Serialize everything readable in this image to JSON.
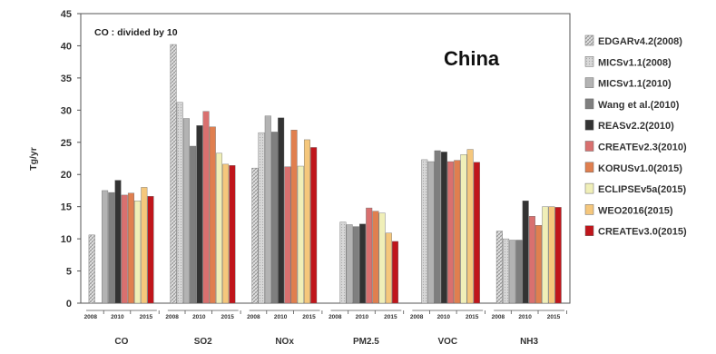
{
  "chart_data": {
    "type": "bar",
    "title": "",
    "annotation": "CO : divided by 10",
    "region_label": "China",
    "ylabel": "Tg/yr",
    "xlabel": "",
    "ylim": [
      0,
      45
    ],
    "yticks": [
      0,
      5,
      10,
      15,
      20,
      25,
      30,
      35,
      40,
      45
    ],
    "grid": false,
    "legend_position": "right",
    "categories": [
      "CO",
      "SO2",
      "NOx",
      "PM2.5",
      "VOC",
      "NH3"
    ],
    "year_ticks": [
      "2008",
      "2010",
      "2015"
    ],
    "series": [
      {
        "name": "EDGARv4.2(2008)",
        "color": "#d9d9d9",
        "pattern": "hatch",
        "values": [
          10.6,
          40.2,
          21.0,
          null,
          null,
          11.2
        ]
      },
      {
        "name": "MICSv1.1(2008)",
        "color": "#c8c8c8",
        "pattern": "light",
        "values": [
          null,
          31.2,
          26.5,
          12.6,
          22.3,
          10.0
        ]
      },
      {
        "name": "MICSv1.1(2010)",
        "color": "#b3b3b3",
        "pattern": "solid",
        "values": [
          17.5,
          28.7,
          29.1,
          12.2,
          22.0,
          9.8
        ]
      },
      {
        "name": "Wang et al.(2010)",
        "color": "#7f7f7f",
        "pattern": "solid",
        "values": [
          17.2,
          24.4,
          26.6,
          11.9,
          23.7,
          9.8
        ]
      },
      {
        "name": "REASv2.2(2010)",
        "color": "#333333",
        "pattern": "solid",
        "values": [
          19.1,
          27.6,
          28.8,
          12.3,
          23.5,
          15.9
        ]
      },
      {
        "name": "CREATEv2.3(2010)",
        "color": "#d9706f",
        "pattern": "solid",
        "values": [
          16.8,
          29.8,
          21.2,
          14.8,
          22.0,
          13.5
        ]
      },
      {
        "name": "KORUSv1.0(2015)",
        "color": "#e07f4f",
        "pattern": "solid",
        "values": [
          17.1,
          27.4,
          26.9,
          14.3,
          22.2,
          12.1
        ]
      },
      {
        "name": "ECLIPSEv5a(2015)",
        "color": "#f0efb8",
        "pattern": "solid",
        "values": [
          15.9,
          23.3,
          21.3,
          14.0,
          23.1,
          15.0
        ]
      },
      {
        "name": "WEO2016(2015)",
        "color": "#f5c77c",
        "pattern": "solid",
        "values": [
          18.0,
          21.6,
          25.4,
          10.9,
          23.9,
          15.0
        ]
      },
      {
        "name": "CREATEv3.0(2015)",
        "color": "#c0151b",
        "pattern": "solid",
        "values": [
          16.6,
          21.4,
          24.2,
          9.6,
          21.9,
          14.9
        ]
      }
    ]
  }
}
